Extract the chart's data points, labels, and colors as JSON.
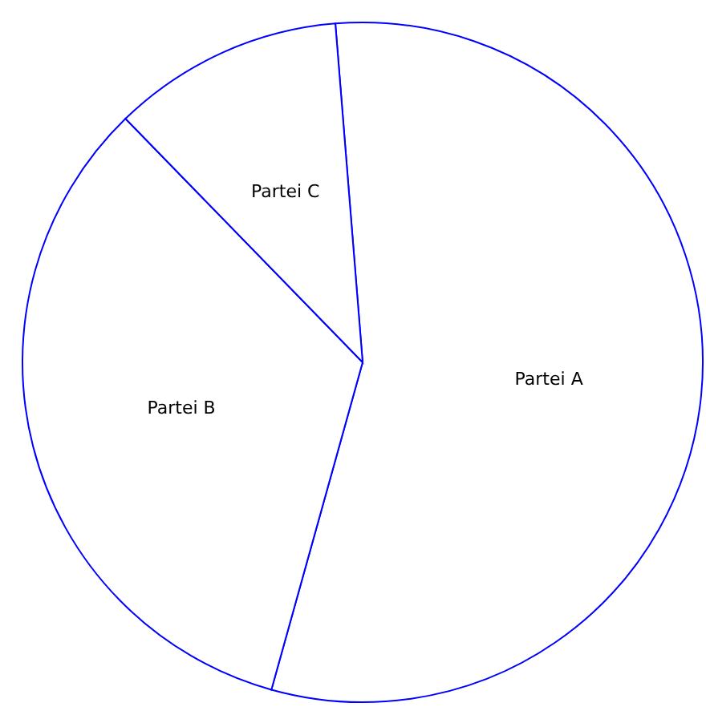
{
  "chart_data": {
    "type": "pie",
    "categories": [
      "Partei A",
      "Partei B",
      "Partei C"
    ],
    "values": [
      55.6,
      33.4,
      11
    ],
    "colors": [
      "#ffffff",
      "#ffffff",
      "#ffffff"
    ]
  }
}
